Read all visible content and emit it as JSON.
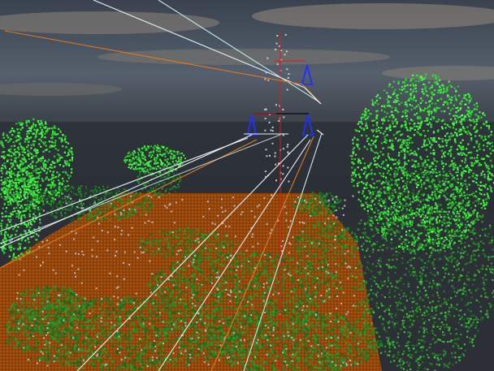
{
  "scene": {
    "description_colors": {
      "sky_top": "#3a4250",
      "sky_mid": "#566170",
      "horizon": "#2b2f36",
      "cloud": "#8a8276",
      "ground": "#9c4a0c",
      "ground_dark": "#6e3408",
      "vegetation_dark": "#1e7a22",
      "vegetation_mid": "#2faa2f",
      "vegetation_bright": "#3cf23c",
      "points_gray": "#b9b9c2",
      "tower_blue": "#2030ff",
      "tower_red": "#e01818",
      "wire_white": "#e6f2f4",
      "wire_cyan": "#bfe8ee",
      "wire_orange": "#e07a20",
      "crossarm_black": "#111111"
    }
  }
}
